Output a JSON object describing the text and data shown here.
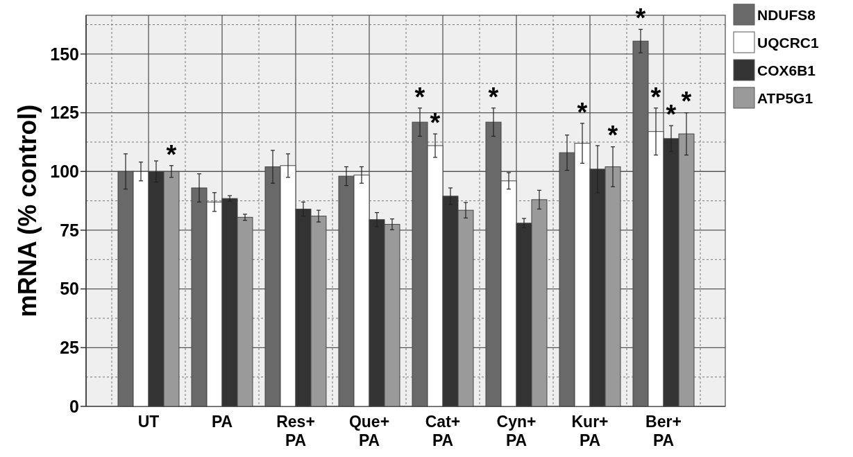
{
  "chart_data": {
    "type": "bar",
    "ylabel": "mRNA  (% control)",
    "categories": [
      "UT",
      "PA",
      "Res+\nPA",
      "Que+\nPA",
      "Cat+\nPA",
      "Cyn+\nPA",
      "Kur+\nPA",
      "Ber+\nPA"
    ],
    "series": [
      {
        "name": "NDUFS8",
        "color": "#696969",
        "values": [
          100,
          93,
          102,
          98,
          121,
          121,
          108,
          155.5
        ],
        "errors": [
          7.5,
          6,
          7,
          4,
          6,
          6,
          7.5,
          5
        ],
        "value_labels": [
          null,
          null,
          null,
          null,
          "*",
          "*",
          null,
          "*"
        ]
      },
      {
        "name": "UQCRC1",
        "color": "#ffffff",
        "values": [
          100,
          87,
          102.5,
          98.5,
          111,
          96,
          112,
          117
        ],
        "errors": [
          4,
          4,
          5,
          3.5,
          5,
          3.5,
          8.5,
          10
        ],
        "value_labels": [
          null,
          null,
          null,
          null,
          "*",
          null,
          "*",
          "*"
        ]
      },
      {
        "name": "COX6B1",
        "color": "#333333",
        "values": [
          100,
          88.5,
          84,
          79.5,
          89.5,
          78,
          101,
          114
        ],
        "errors": [
          4.5,
          1.2,
          3,
          3,
          3.5,
          2,
          10,
          5.5
        ],
        "value_labels": [
          null,
          null,
          null,
          null,
          null,
          null,
          null,
          "*"
        ]
      },
      {
        "name": "ATP5G1",
        "color": "#9a9a9a",
        "values": [
          100,
          80.5,
          81,
          77.5,
          83.5,
          88,
          102,
          116
        ],
        "errors": [
          2.5,
          1.3,
          2.5,
          2.3,
          3.3,
          4,
          8.5,
          9
        ],
        "value_labels": [
          "*",
          null,
          null,
          null,
          null,
          null,
          "*",
          "*"
        ]
      }
    ],
    "ylim": [
      0,
      166.5
    ],
    "yticks": [
      0,
      25,
      50,
      75,
      100,
      125,
      150
    ],
    "grid": true,
    "legend": "right"
  }
}
